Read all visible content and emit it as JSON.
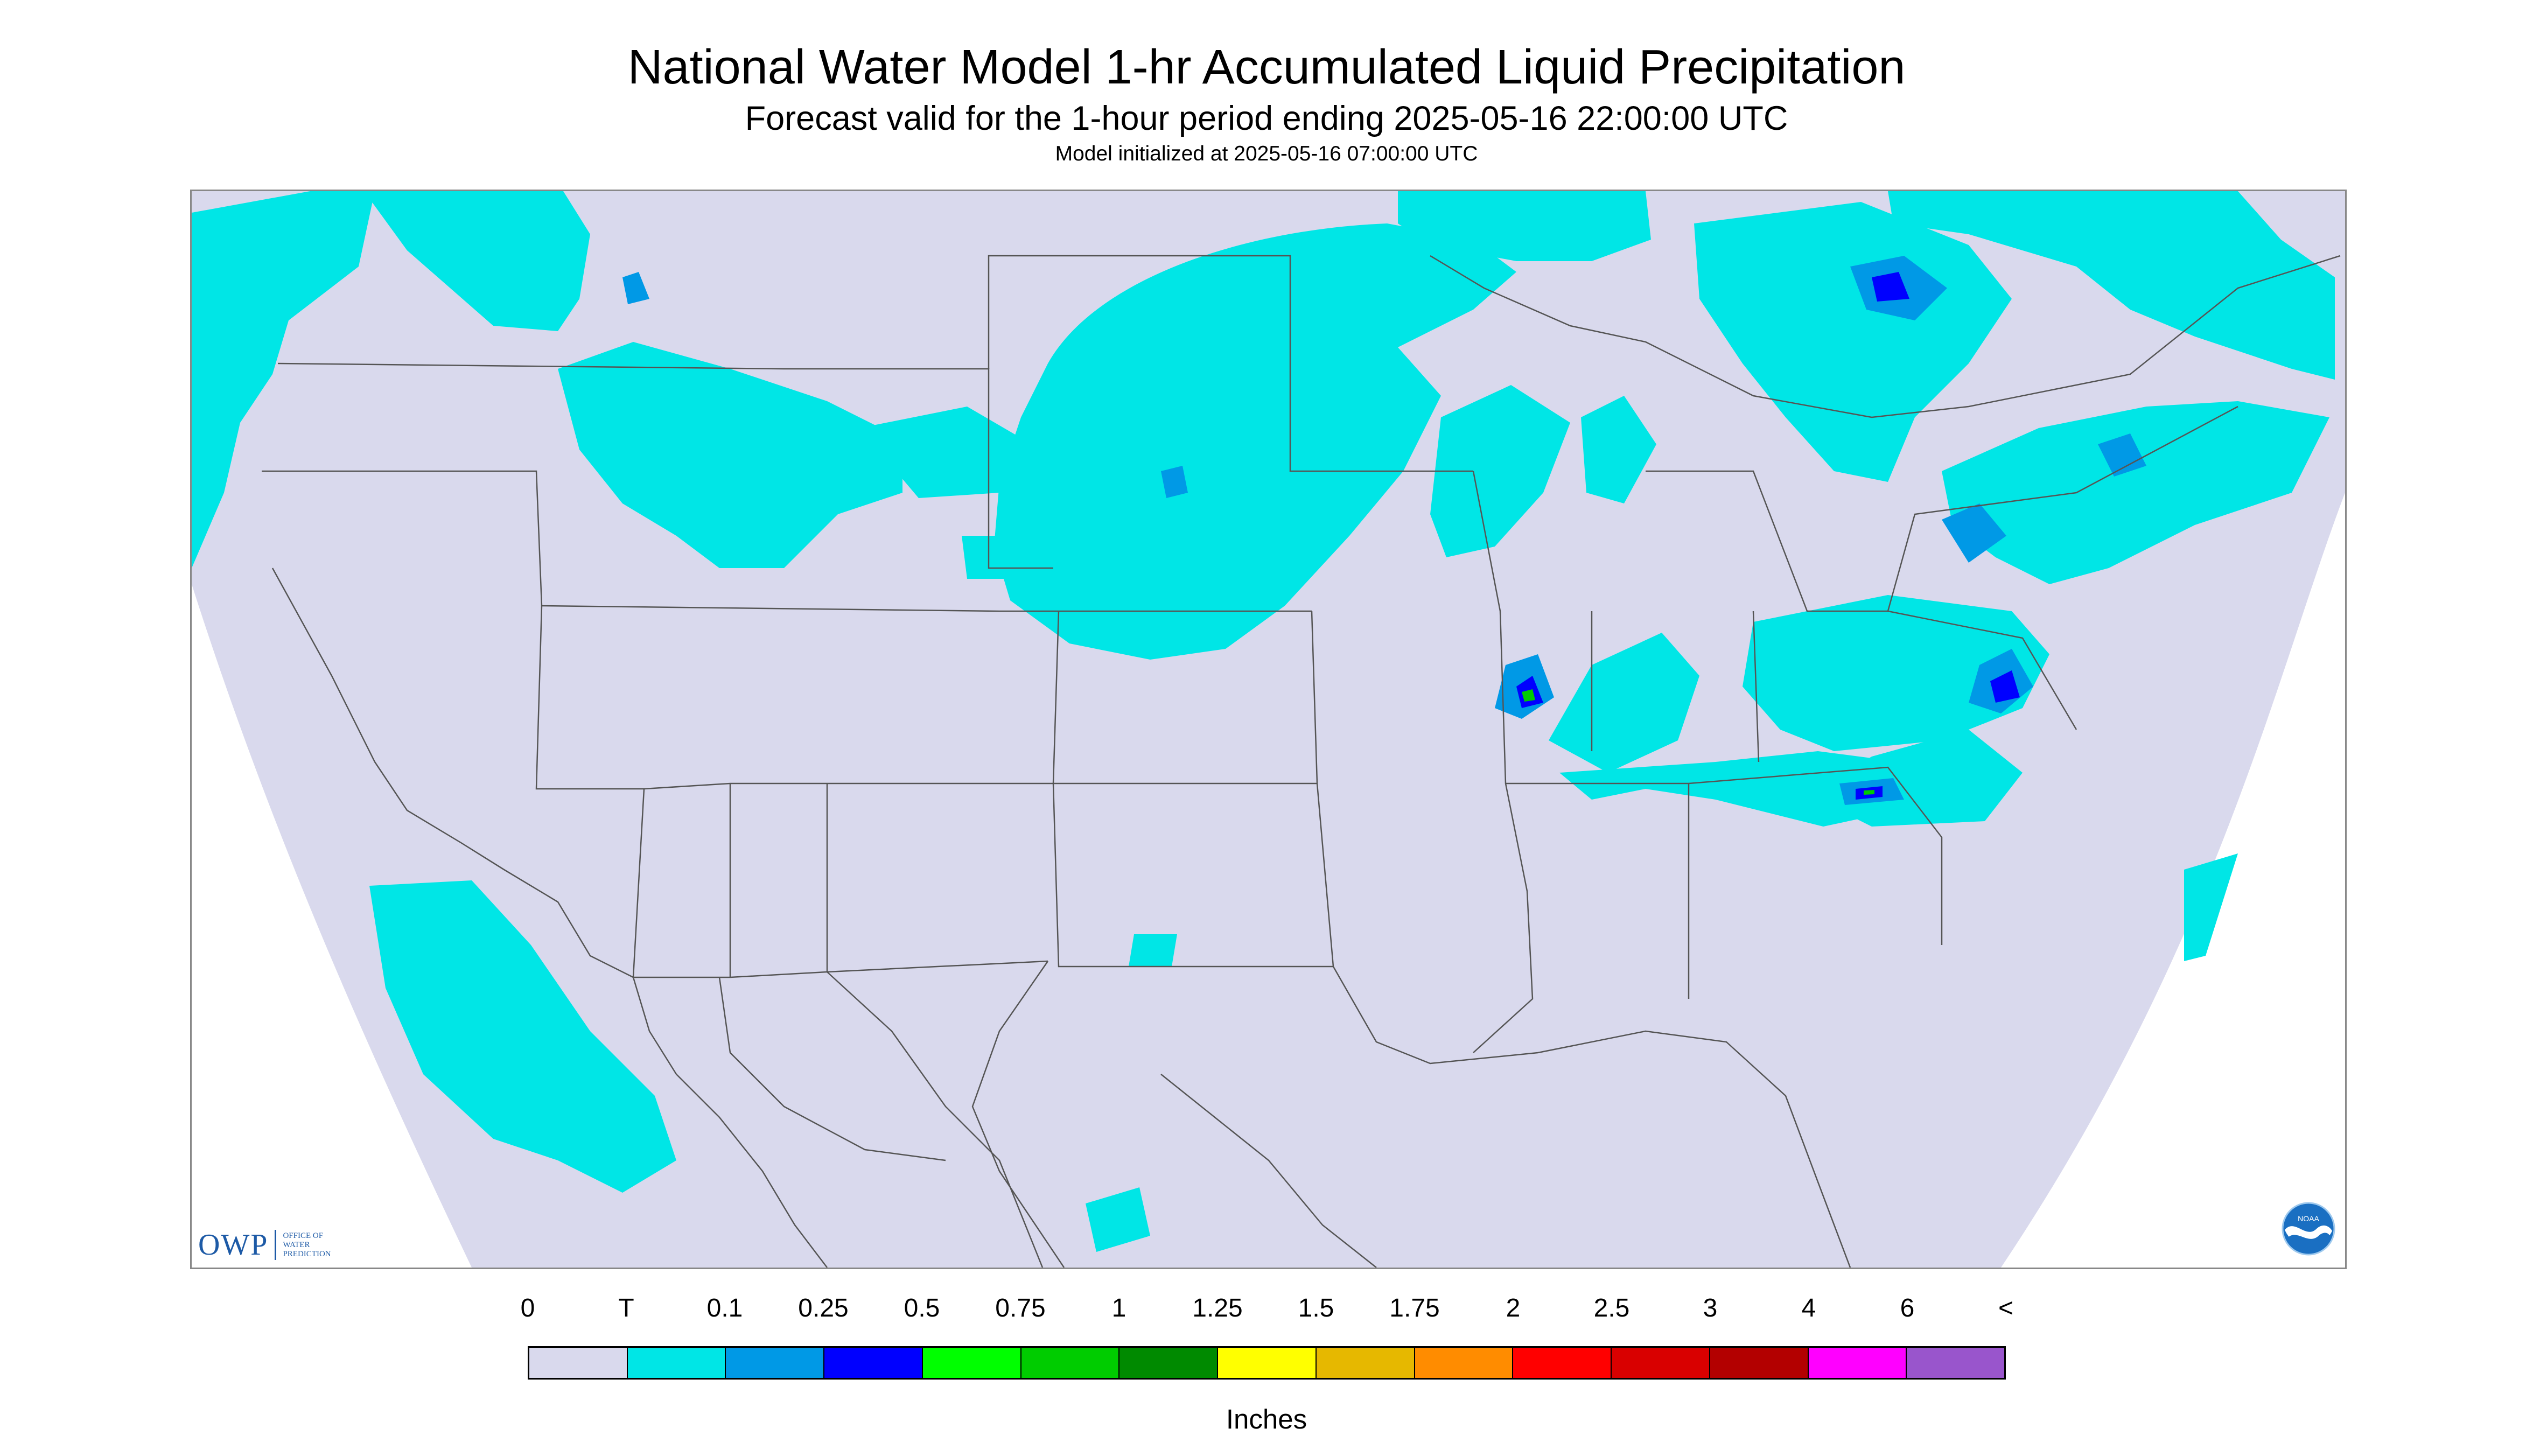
{
  "header": {
    "title": "National Water Model 1-hr Accumulated Liquid Precipitation",
    "subtitle": "Forecast valid for the 1-hour period ending 2025-05-16 22:00:00 UTC",
    "init": "Model initialized at 2025-05-16 07:00:00 UTC"
  },
  "map": {
    "background_color": "#d9d9ed",
    "outside_color": "#ffffff",
    "boundary_color": "#555555",
    "precip_colors": {
      "trace": "#00e6e6",
      "light": "#0099e6",
      "moderate": "#0000ff",
      "heavy": "#00cc00"
    }
  },
  "logos": {
    "owp_abbrev": "OWP",
    "owp_full": [
      "OFFICE OF",
      "WATER",
      "PREDICTION"
    ],
    "noaa": "NOAA"
  },
  "legend": {
    "labels": [
      "0",
      "T",
      "0.1",
      "0.25",
      "0.5",
      "0.75",
      "1",
      "1.25",
      "1.5",
      "1.75",
      "2",
      "2.5",
      "3",
      "4",
      "6",
      "<"
    ],
    "colors": [
      "#d9d9ed",
      "#00e6e6",
      "#0099e6",
      "#0000ff",
      "#00ff00",
      "#00cc00",
      "#008a00",
      "#ffff00",
      "#e6b800",
      "#ff8c00",
      "#ff0000",
      "#d90000",
      "#b30000",
      "#ff00ff",
      "#9955cc"
    ],
    "units": "Inches"
  }
}
